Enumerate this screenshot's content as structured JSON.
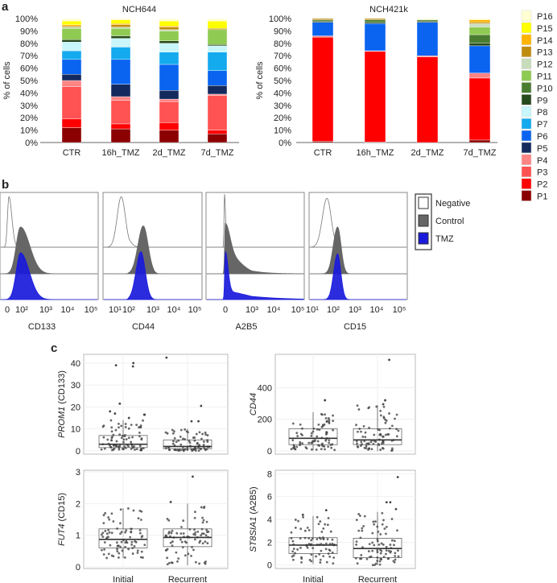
{
  "panel_letters": {
    "a": "a",
    "b": "b",
    "c": "c"
  },
  "colors": {
    "P1": "#8b0000",
    "P2": "#ff0000",
    "P3": "#ff5252",
    "P4": "#ff8484",
    "P5": "#142a5e",
    "P6": "#0a64f0",
    "P7": "#14aaee",
    "P8": "#c8f6fa",
    "P9": "#274a1c",
    "P10": "#4a7c30",
    "P11": "#8fca52",
    "P12": "#c8dcbc",
    "P13": "#c08c10",
    "P14": "#ffb400",
    "P15": "#ffff00",
    "P16": "#ffffd2",
    "negative": "#ffffff",
    "control": "#666666",
    "tmz": "#1a1adc"
  },
  "chart_data": [
    {
      "type": "bar",
      "stacked": true,
      "title": "NCH644",
      "ylabel": "% of cells",
      "ylim": [
        0,
        100
      ],
      "yticks": [
        "0%",
        "10%",
        "20%",
        "30%",
        "40%",
        "50%",
        "60%",
        "70%",
        "80%",
        "90%",
        "100%"
      ],
      "categories": [
        "CTR",
        "16h_TMZ",
        "2d_TMZ",
        "7d_TMZ"
      ],
      "series": [
        {
          "name": "P1",
          "values": [
            12,
            11,
            10,
            7
          ]
        },
        {
          "name": "P2",
          "values": [
            7,
            4,
            6,
            3
          ]
        },
        {
          "name": "P3",
          "values": [
            26,
            19,
            17,
            28
          ]
        },
        {
          "name": "P4",
          "values": [
            5,
            3,
            2,
            1
          ]
        },
        {
          "name": "P5",
          "values": [
            5,
            10,
            7,
            7
          ]
        },
        {
          "name": "P6",
          "values": [
            12,
            20,
            21,
            12
          ]
        },
        {
          "name": "P7",
          "values": [
            7,
            10,
            10,
            15
          ]
        },
        {
          "name": "P8",
          "values": [
            7,
            7,
            7,
            5
          ]
        },
        {
          "name": "P9",
          "values": [
            2,
            2,
            2,
            1
          ]
        },
        {
          "name": "P10",
          "values": [
            0,
            0,
            0,
            0
          ]
        },
        {
          "name": "P11",
          "values": [
            9,
            6,
            8,
            12
          ]
        },
        {
          "name": "P12",
          "values": [
            1,
            1,
            1,
            0
          ]
        },
        {
          "name": "P13",
          "values": [
            1,
            2,
            2,
            1
          ]
        },
        {
          "name": "P14",
          "values": [
            1,
            1,
            1,
            0
          ]
        },
        {
          "name": "P15",
          "values": [
            3,
            3,
            4,
            6
          ]
        },
        {
          "name": "P16",
          "values": [
            2,
            1,
            2,
            2
          ]
        }
      ]
    },
    {
      "type": "bar",
      "stacked": true,
      "title": "NCH421k",
      "ylabel": "% of cells",
      "ylim": [
        0,
        100
      ],
      "yticks": [
        "0%",
        "10%",
        "20%",
        "30%",
        "40%",
        "50%",
        "60%",
        "70%",
        "80%",
        "90%",
        "100%"
      ],
      "categories": [
        "CTR",
        "16h_TMZ",
        "2d_TMZ",
        "7d_TMZ"
      ],
      "series": [
        {
          "name": "P1",
          "values": [
            1,
            0.5,
            0,
            2
          ]
        },
        {
          "name": "P2",
          "values": [
            84,
            73,
            69,
            50
          ]
        },
        {
          "name": "P3",
          "values": [
            0,
            0,
            0,
            0
          ]
        },
        {
          "name": "P4",
          "values": [
            1,
            0.5,
            1,
            4
          ]
        },
        {
          "name": "P5",
          "values": [
            0,
            0,
            0,
            0
          ]
        },
        {
          "name": "P6",
          "values": [
            11,
            22,
            27,
            22
          ]
        },
        {
          "name": "P7",
          "values": [
            0,
            0,
            0,
            0
          ]
        },
        {
          "name": "P8",
          "values": [
            0,
            0,
            0,
            0
          ]
        },
        {
          "name": "P9",
          "values": [
            1,
            1,
            1,
            2
          ]
        },
        {
          "name": "P10",
          "values": [
            1,
            2,
            1,
            7
          ]
        },
        {
          "name": "P11",
          "values": [
            0,
            0,
            0,
            6
          ]
        },
        {
          "name": "P12",
          "values": [
            0,
            0,
            0,
            3
          ]
        },
        {
          "name": "P13",
          "values": [
            1,
            1,
            0,
            1
          ]
        },
        {
          "name": "P14",
          "values": [
            0,
            0,
            0,
            2
          ]
        },
        {
          "name": "P15",
          "values": [
            0,
            0,
            0,
            0
          ]
        },
        {
          "name": "P16",
          "values": [
            0,
            0,
            1,
            1
          ]
        }
      ]
    },
    {
      "type": "histogram",
      "legend": [
        "Negative",
        "Control",
        "TMZ"
      ],
      "panels": [
        {
          "marker": "CD133",
          "ticks": [
            {
              "label": "0",
              "v": 1.4
            },
            {
              "label": "10²",
              "v": 2
            },
            {
              "label": "10³",
              "v": 3
            },
            {
              "label": "10⁴",
              "v": 4
            },
            {
              "label": "10⁵",
              "v": 5
            }
          ],
          "curves": {
            "Negative": [
              {
                "c": 1.47,
                "sl": 0.06,
                "sr": 0.12,
                "h": 0.95
              }
            ],
            "Control": [
              {
                "c": 1.95,
                "sl": 0.18,
                "sr": 0.38,
                "h": 0.88
              }
            ],
            "TMZ": [
              {
                "c": 1.95,
                "sl": 0.18,
                "sr": 0.36,
                "h": 0.88
              }
            ]
          }
        },
        {
          "marker": "CD44",
          "ticks": [
            {
              "label": "10¹",
              "v": 1
            },
            {
              "label": "10²",
              "v": 2
            },
            {
              "label": "10³",
              "v": 3
            },
            {
              "label": "10⁴",
              "v": 4
            },
            {
              "label": "10⁵",
              "v": 5
            }
          ],
          "curves": {
            "Negative": [
              {
                "c": 1.45,
                "sl": 0.3,
                "sr": 0.3,
                "h": 0.95
              }
            ],
            "Control": [
              {
                "c": 2.6,
                "sl": 0.22,
                "sr": 0.2,
                "h": 0.9
              }
            ],
            "TMZ": [
              {
                "c": 2.5,
                "sl": 0.2,
                "sr": 0.18,
                "h": 0.9
              }
            ]
          }
        },
        {
          "marker": "A2B5",
          "ticks": [
            {
              "label": "0",
              "v": 0
            },
            {
              "label": "10³",
              "v": 3
            },
            {
              "label": "10⁴",
              "v": 4
            },
            {
              "label": "10⁵",
              "v": 5
            }
          ],
          "curves": {
            "Negative": [
              {
                "c": -0.1,
                "sl": 0.05,
                "sr": 0.12,
                "h": 1.0
              }
            ],
            "Control": [
              {
                "c": 0,
                "sl": 0.08,
                "sr": 0.5,
                "h": 0.55
              },
              {
                "c": 0,
                "sl": 0.08,
                "sr": 1.5,
                "h": 0.4
              }
            ],
            "TMZ": [
              {
                "c": 0,
                "sl": 0.08,
                "sr": 0.3,
                "h": 0.75
              },
              {
                "c": 0,
                "sl": 0.08,
                "sr": 2.2,
                "h": 0.15
              }
            ]
          }
        },
        {
          "marker": "CD15",
          "ticks": [
            {
              "label": "10¹",
              "v": 1
            },
            {
              "label": "10²",
              "v": 2
            },
            {
              "label": "10³",
              "v": 3
            },
            {
              "label": "10⁴",
              "v": 4
            },
            {
              "label": "10⁵",
              "v": 5
            }
          ],
          "curves": {
            "Negative": [
              {
                "c": 1.7,
                "sl": 0.22,
                "sr": 0.2,
                "h": 0.92
              }
            ],
            "Control": [
              {
                "c": 2.2,
                "sl": 0.2,
                "sr": 0.16,
                "h": 0.88
              }
            ],
            "TMZ": [
              {
                "c": 2.2,
                "sl": 0.18,
                "sr": 0.15,
                "h": 0.86
              }
            ]
          }
        }
      ]
    },
    {
      "type": "boxplot",
      "categories": [
        "Initial",
        "Recurrent"
      ],
      "plots": [
        {
          "gene": "PROM1",
          "suffix": " (CD133)",
          "ylim": [
            -1.5,
            44
          ],
          "yticks": [
            0,
            10,
            20,
            30,
            40
          ],
          "boxes": [
            {
              "lo": 0.3,
              "q1": 1.5,
              "med": 3,
              "q3": 7,
              "hi": 14,
              "outliers": [
                40,
                39,
                38.5,
                21.5,
                18,
                17,
                16.5,
                16.5,
                15
              ]
            },
            {
              "lo": 0,
              "q1": 1,
              "med": 2,
              "q3": 5,
              "hi": 10,
              "outliers": [
                42.5,
                20.5,
                13.5,
                13.5
              ]
            }
          ]
        },
        {
          "gene": "CD44",
          "suffix": "",
          "ylim": [
            -20,
            610
          ],
          "yticks": [
            0,
            200,
            400
          ],
          "boxes": [
            {
              "lo": 5,
              "q1": 40,
              "med": 80,
              "q3": 140,
              "hi": 245,
              "outliers": [
                320
              ]
            },
            {
              "lo": 0,
              "q1": 40,
              "med": 70,
              "q3": 140,
              "hi": 290,
              "outliers": [
                575,
                320,
                295
              ]
            }
          ]
        },
        {
          "gene": "FUT4",
          "suffix": " (CD15)",
          "ylim": [
            -0.05,
            3.05
          ],
          "yticks": [
            0,
            1,
            2,
            3
          ],
          "boxes": [
            {
              "lo": 0.28,
              "q1": 0.6,
              "med": 0.87,
              "q3": 1.2,
              "hi": 1.85,
              "outliers": []
            },
            {
              "lo": 0.05,
              "q1": 0.64,
              "med": 0.93,
              "q3": 1.2,
              "hi": 2.0,
              "outliers": [
                2.85,
                2.05
              ]
            }
          ]
        },
        {
          "gene": "ST8SIA1",
          "suffix": " (A2B5)",
          "ylim": [
            -0.3,
            8.3
          ],
          "yticks": [
            0,
            2,
            4,
            6,
            8
          ],
          "boxes": [
            {
              "lo": 0.1,
              "q1": 1,
              "med": 1.75,
              "q3": 2.4,
              "hi": 4.3,
              "outliers": [
                4.8,
                4.4
              ]
            },
            {
              "lo": 0,
              "q1": 0.65,
              "med": 1.45,
              "q3": 2.35,
              "hi": 4.65,
              "outliers": [
                7.7,
                5.5,
                5.5,
                4.9
              ]
            }
          ]
        }
      ]
    }
  ]
}
